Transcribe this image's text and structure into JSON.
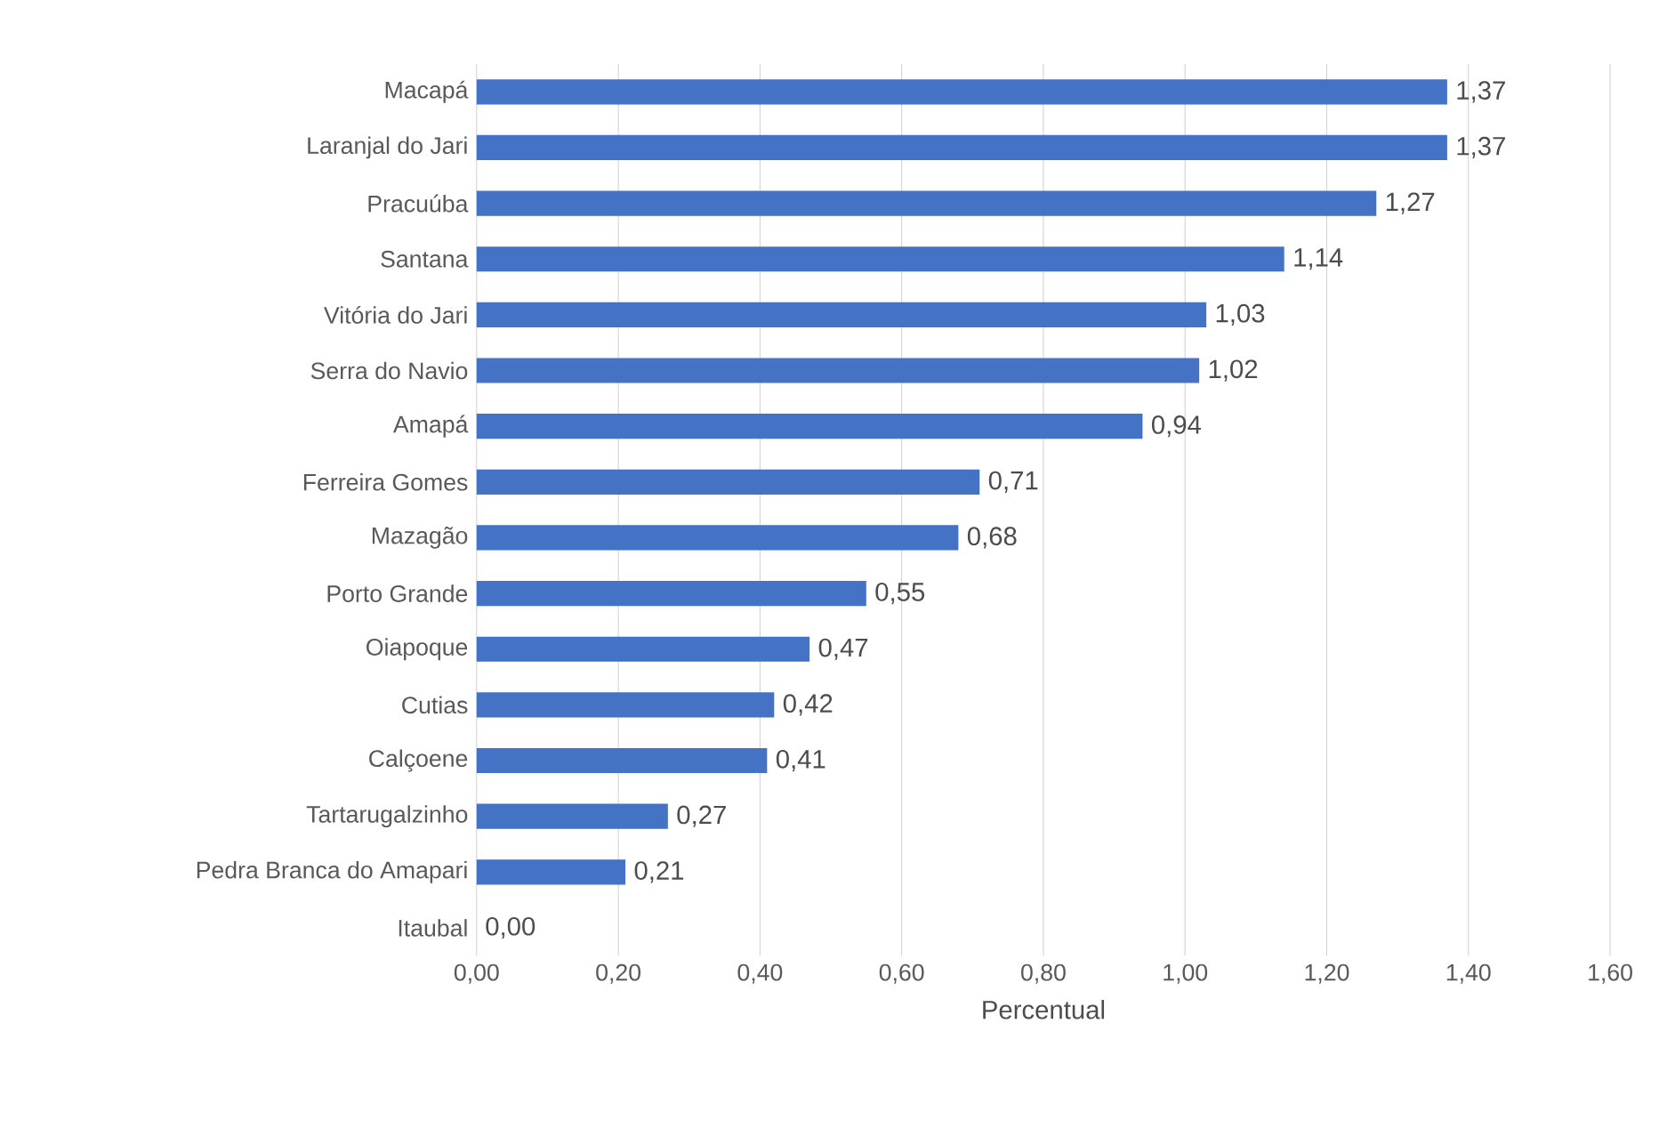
{
  "chart_data": {
    "type": "bar",
    "orientation": "horizontal",
    "xlabel": "Percentual",
    "categories": [
      "Macapá",
      "Laranjal do Jari",
      "Pracuúba",
      "Santana",
      "Vitória do Jari",
      "Serra do Navio",
      "Amapá",
      "Ferreira Gomes",
      "Mazagão",
      "Porto Grande",
      "Oiapoque",
      "Cutias",
      "Calçoene",
      "Tartarugalzinho",
      "Pedra Branca do Amapari",
      "Itaubal"
    ],
    "values": [
      1.37,
      1.37,
      1.27,
      1.14,
      1.03,
      1.02,
      0.94,
      0.71,
      0.68,
      0.55,
      0.47,
      0.42,
      0.41,
      0.27,
      0.21,
      0.0
    ],
    "value_labels": [
      "1,37",
      "1,37",
      "1,27",
      "1,14",
      "1,03",
      "1,02",
      "0,94",
      "0,71",
      "0,68",
      "0,55",
      "0,47",
      "0,42",
      "0,41",
      "0,27",
      "0,21",
      "0,00"
    ],
    "color": "#4472c4",
    "xlim": [
      0,
      1.6
    ],
    "xticks": [
      {
        "value": 0,
        "label": "0,00"
      },
      {
        "value": 0.2,
        "label": "0,20"
      },
      {
        "value": 0.4,
        "label": "0,40"
      },
      {
        "value": 0.6,
        "label": "0,60"
      },
      {
        "value": 0.8,
        "label": "0,80"
      },
      {
        "value": 1.0,
        "label": "1,00"
      },
      {
        "value": 1.2,
        "label": "1,20"
      },
      {
        "value": 1.4,
        "label": "1,40"
      },
      {
        "value": 1.6,
        "label": "1,60"
      }
    ],
    "grid": "x"
  }
}
